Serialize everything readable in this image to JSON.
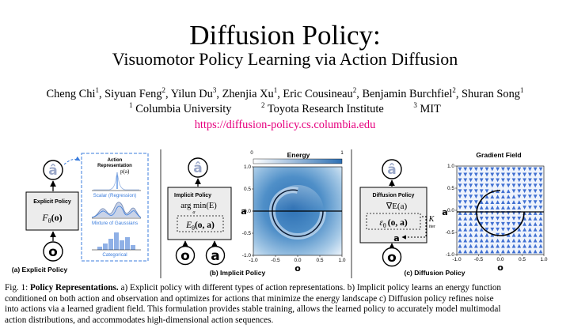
{
  "header": {
    "title": "Diffusion Policy:",
    "subtitle": "Visuomotor Policy Learning via Action Diffusion",
    "authors": [
      {
        "name": "Cheng Chi",
        "aff": "1"
      },
      {
        "name": "Siyuan Feng",
        "aff": "2"
      },
      {
        "name": "Yilun Du",
        "aff": "3"
      },
      {
        "name": "Zhenjia Xu",
        "aff": "1"
      },
      {
        "name": "Eric Cousineau",
        "aff": "2"
      },
      {
        "name": "Benjamin Burchfiel",
        "aff": "2"
      },
      {
        "name": "Shuran Song",
        "aff": "1"
      }
    ],
    "affiliations": [
      {
        "num": "1",
        "name": "Columbia University"
      },
      {
        "num": "2",
        "name": "Toyota Research Institute"
      },
      {
        "num": "3",
        "name": "MIT"
      }
    ],
    "url": "https://diffusion-policy.cs.columbia.edu"
  },
  "figure": {
    "panel_a": {
      "caption": "(a) Explicit Policy",
      "box_title": "Explicit Policy",
      "formula": "F",
      "formula_sub": "θ",
      "formula_arg": "(o)",
      "output_symbol": "â",
      "input_symbol": "o",
      "rep_title_line1": "Action",
      "rep_title_line2": "Representation",
      "p_label": "p(a)",
      "rep_labels": [
        "Scalar (Regression)",
        "Mixture of Gaussians",
        "Categorical"
      ]
    },
    "panel_b": {
      "caption": "(b) Implicit Policy",
      "box_title": "Implicit Policy",
      "argmin": "arg min(E)",
      "argmin_sub": "a",
      "energy_fn": "E",
      "energy_sub": "θ",
      "energy_arg": "(o, a)",
      "output_symbol": "â",
      "input_symbols": [
        "o",
        "a"
      ],
      "heatmap_title": "Energy",
      "colorbar_ticks": [
        "0",
        "1"
      ],
      "axis_y_label": "a",
      "axis_x_label": "o",
      "colors": {
        "low": "#ffffff",
        "high": "#2c6fb3"
      }
    },
    "panel_c": {
      "caption": "(c) Diffusion Policy",
      "box_title": "Diffusion Policy",
      "grad": "∇E(a)",
      "noise_fn": "ε",
      "noise_sub": "θ",
      "noise_arg": "(o, a)",
      "k_label": "K",
      "k_sub": "iter",
      "a_label": "a",
      "output_symbol": "â",
      "input_symbol": "o",
      "field_title": "Gradient Field",
      "axis_y_label": "a",
      "axis_x_label": "o",
      "colors": {
        "arrow": "#3f6fd1"
      }
    }
  },
  "chart_data": [
    {
      "type": "heatmap",
      "title": "Energy",
      "xlabel": "o",
      "ylabel": "a",
      "xlim": [
        -1.0,
        1.0
      ],
      "ylim": [
        -1.0,
        1.0
      ],
      "x_ticks": [
        "-1.0",
        "-0.5",
        "0.0",
        "0.5",
        "1.0"
      ],
      "y_ticks": [
        "1.0",
        "0.5",
        "0.0",
        "-0.5",
        "-1.0"
      ],
      "colorbar": {
        "min": 0,
        "max": 1
      }
    },
    {
      "type": "scatter",
      "title": "Gradient Field",
      "xlabel": "o",
      "ylabel": "a",
      "xlim": [
        -1.0,
        1.0
      ],
      "ylim": [
        -1.0,
        1.0
      ],
      "x_ticks": [
        "-1.0",
        "-0.5",
        "0.0",
        "0.5",
        "1.0"
      ],
      "y_ticks": [
        "1.0",
        "0.5",
        "0.0",
        "-0.5",
        "-1.0"
      ]
    }
  ],
  "caption": {
    "label": "Fig. 1:",
    "bold": "Policy Representations.",
    "lines": [
      " a) Explicit policy with different types of action representations. b) Implicit policy learns an energy function",
      "conditioned on both action and observation and optimizes for actions that minimize the energy landscape c) Diffusion policy refines noise",
      "into actions via a learned gradient field. This formulation provides stable training, allows the learned policy to accurately model multimodal",
      "action distributions, and accommodates high-dimensional action sequences."
    ]
  }
}
